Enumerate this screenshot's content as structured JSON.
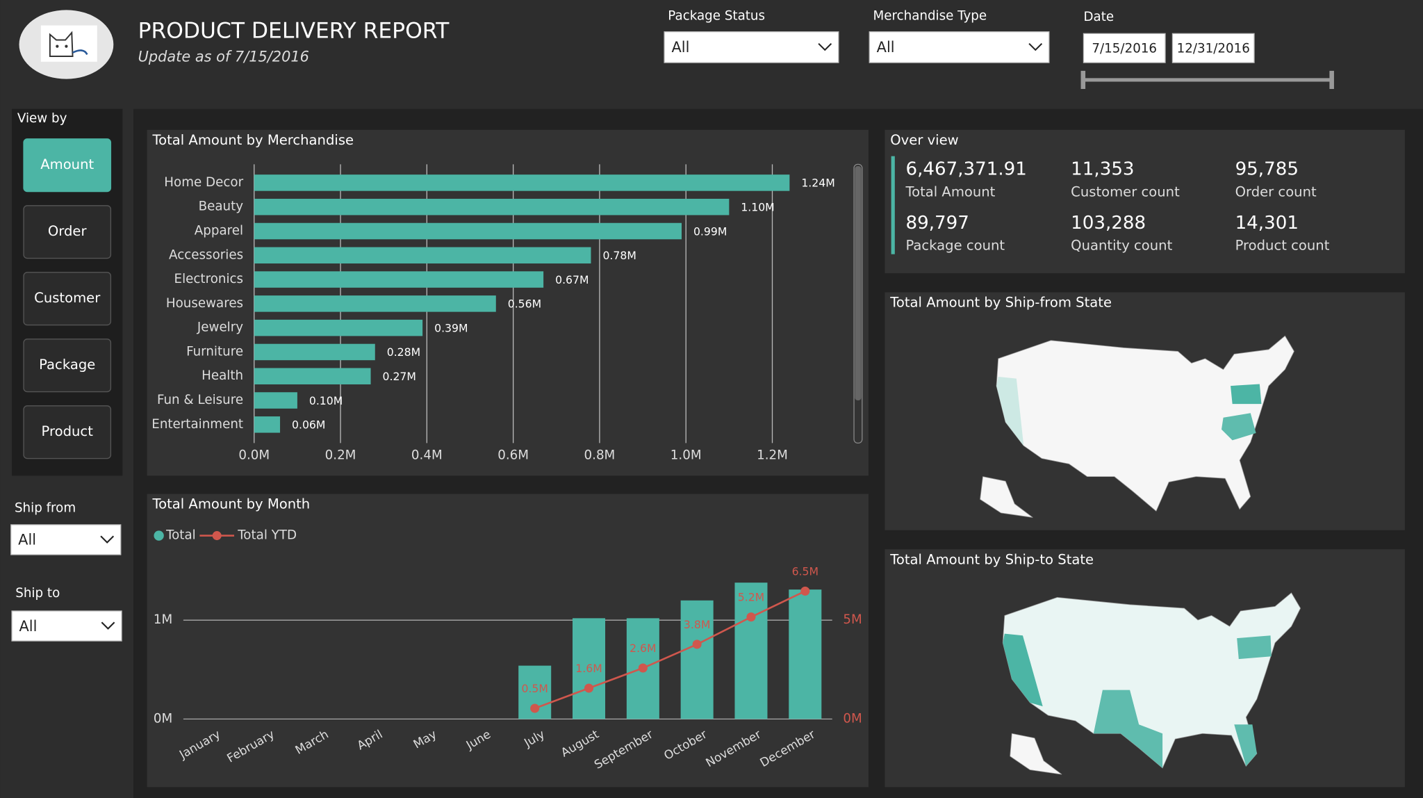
{
  "header": {
    "title": "PRODUCT DELIVERY REPORT",
    "subtitle": "Update as of 7/15/2016"
  },
  "filters": {
    "package_status": {
      "label": "Package Status",
      "value": "All"
    },
    "merchandise_type": {
      "label": "Merchandise Type",
      "value": "All"
    },
    "date": {
      "label": "Date",
      "start": "7/15/2016",
      "end": "12/31/2016"
    }
  },
  "sidebar": {
    "view_by": {
      "label": "View by",
      "buttons": [
        "Amount",
        "Order",
        "Customer",
        "Package",
        "Product"
      ]
    },
    "ship_from": {
      "label": "Ship from",
      "value": "All"
    },
    "ship_to": {
      "label": "Ship to",
      "value": "All"
    }
  },
  "overview": {
    "title": "Over view",
    "kpis": [
      {
        "value": "6,467,371.91",
        "label": "Total Amount"
      },
      {
        "value": "11,353",
        "label": "Customer count"
      },
      {
        "value": "95,785",
        "label": "Order count"
      },
      {
        "value": "89,797",
        "label": "Package count"
      },
      {
        "value": "103,288",
        "label": "Quantity count"
      },
      {
        "value": "14,301",
        "label": "Product count"
      }
    ]
  },
  "maps": [
    {
      "title": "Total Amount by Ship-from State"
    },
    {
      "title": "Total Amount by Ship-to State"
    }
  ],
  "chart_data": [
    {
      "type": "bar",
      "orientation": "horizontal",
      "title": "Total Amount by Merchandise",
      "categories": [
        "Home Decor",
        "Beauty",
        "Apparel",
        "Accessories",
        "Electronics",
        "Housewares",
        "Jewelry",
        "Furniture",
        "Health",
        "Fun & Leisure",
        "Entertainment"
      ],
      "values": [
        1240000,
        1100000,
        990000,
        780000,
        670000,
        560000,
        390000,
        280000,
        270000,
        100000,
        60000
      ],
      "value_labels": [
        "1.24M",
        "1.10M",
        "0.99M",
        "0.78M",
        "0.67M",
        "0.56M",
        "0.39M",
        "0.28M",
        "0.27M",
        "0.10M",
        "0.06M"
      ],
      "color": "#4cb5a5",
      "grid": true,
      "xlim": [
        0,
        1340000
      ],
      "xticks": [
        {
          "value": 0,
          "label": "0.0M"
        },
        {
          "value": 200000,
          "label": "0.2M"
        },
        {
          "value": 400000,
          "label": "0.4M"
        },
        {
          "value": 600000,
          "label": "0.6M"
        },
        {
          "value": 800000,
          "label": "0.8M"
        },
        {
          "value": 1000000,
          "label": "1.0M"
        },
        {
          "value": 1200000,
          "label": "1.2M"
        }
      ]
    },
    {
      "type": "combo",
      "title": "Total Amount by Month",
      "legend": "top-left",
      "grid": true,
      "categories": [
        "January",
        "February",
        "March",
        "April",
        "May",
        "June",
        "July",
        "August",
        "September",
        "October",
        "November",
        "December"
      ],
      "series": [
        {
          "name": "Total",
          "type": "bar",
          "color": "#4cb5a5",
          "values": [
            0,
            0,
            0,
            0,
            0,
            0,
            540000,
            1020000,
            1020000,
            1200000,
            1380000,
            1310000
          ]
        },
        {
          "name": "Total YTD",
          "type": "line",
          "axis": "y2",
          "color": "#d0574d",
          "values": [
            null,
            null,
            null,
            null,
            null,
            null,
            540000,
            1560000,
            2580000,
            3780000,
            5160000,
            6470000
          ],
          "value_labels": [
            null,
            null,
            null,
            null,
            null,
            null,
            "0.5M",
            "1.6M",
            "2.6M",
            "3.8M",
            "5.2M",
            "6.5M"
          ]
        }
      ],
      "ylim": [
        0,
        1580000
      ],
      "yticks": [
        {
          "value": 0,
          "label": "0M"
        },
        {
          "value": 1000000,
          "label": "1M"
        }
      ],
      "y2lim": [
        0,
        7900000
      ],
      "y2ticks": [
        {
          "value": 0,
          "label": "0M"
        },
        {
          "value": 5000000,
          "label": "5M"
        }
      ]
    }
  ]
}
